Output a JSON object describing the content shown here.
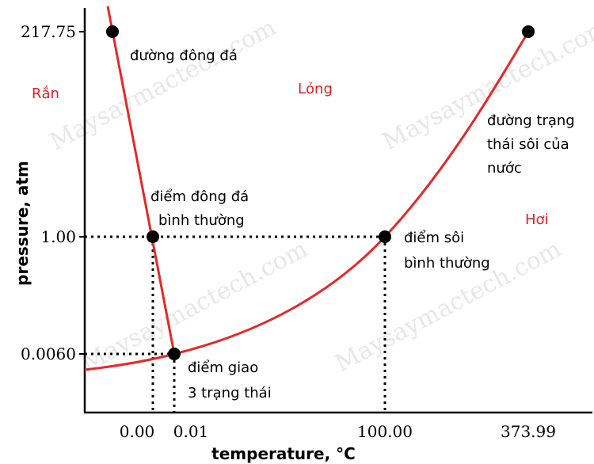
{
  "chart_data": {
    "type": "line",
    "title": "",
    "xlabel": "temperature, °C",
    "ylabel": "pressure, atm",
    "x_ticks": [
      "0.00",
      "0.01",
      "100.00",
      "373.99"
    ],
    "y_ticks": [
      "217.75",
      "1.00",
      "0.0060"
    ],
    "points": [
      {
        "x": 0.01,
        "y": 0.006,
        "label": [
          "điểm giao",
          "3 trạng thái"
        ]
      },
      {
        "x": 0.0,
        "y": 1.0,
        "label": [
          "điểm đông đá",
          "bình thường"
        ]
      },
      {
        "x": 100.0,
        "y": 1.0,
        "label": [
          "điểm sôi",
          "bình thường"
        ]
      },
      {
        "x": 373.99,
        "y": 217.75,
        "label": []
      },
      {
        "x": -0.01,
        "y": 217.75,
        "label": []
      }
    ],
    "curve_labels": {
      "freezing": "đường đông đá",
      "boiling": [
        "đường trạng",
        "thái sôi của",
        "nước"
      ]
    },
    "regions": {
      "solid": "Rắn",
      "liquid": "Lỏng",
      "gas": "Hơi"
    },
    "watermark": "Maysaymactech.com",
    "colors": {
      "curve": "#e62828",
      "point": "#000000",
      "region_text": "#e02020"
    }
  }
}
